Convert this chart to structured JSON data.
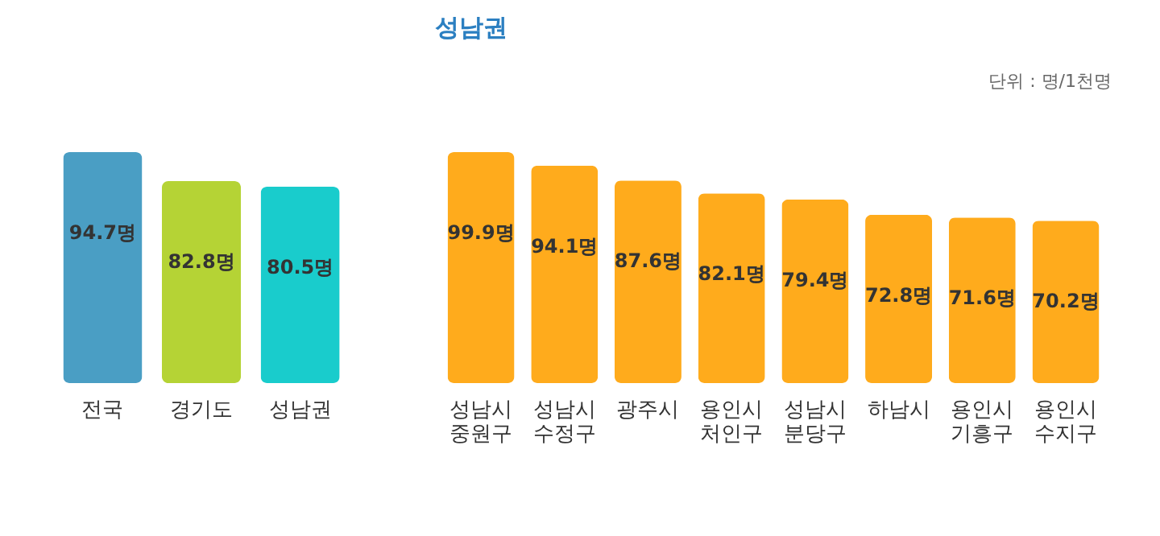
{
  "chart_data": [
    {
      "type": "bar",
      "categories": [
        "전국",
        "경기도",
        "성남권"
      ],
      "values": [
        94.7,
        82.8,
        80.5
      ],
      "colors": [
        "#4a9ec4",
        "#b5d335",
        "#19cccc"
      ],
      "value_labels": [
        "94.7명",
        "82.8명",
        "80.5명"
      ]
    },
    {
      "type": "bar",
      "title": "성남권",
      "annotations": [
        "단위 : 명/1천명"
      ],
      "categories": [
        "성남시 중원구",
        "성남시 수정구",
        "광주시",
        "용인시 처인구",
        "성남시 분당구",
        "하남시",
        "용인시 기흥구",
        "용인시 수지구"
      ],
      "values": [
        99.9,
        94.1,
        87.6,
        82.1,
        79.4,
        72.8,
        71.6,
        70.2
      ],
      "color": "#ffab1c",
      "value_labels": [
        "99.9명",
        "94.1명",
        "87.6명",
        "82.1명",
        "79.4명",
        "72.8명",
        "71.6명",
        "70.2명"
      ]
    }
  ]
}
